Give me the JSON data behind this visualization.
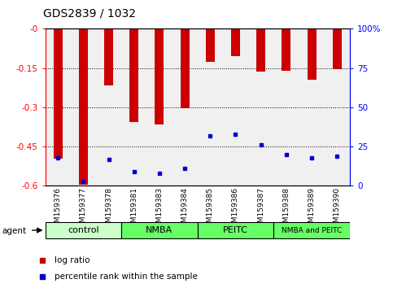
{
  "title": "GDS2839 / 1032",
  "categories": [
    "GSM159376",
    "GSM159377",
    "GSM159378",
    "GSM159381",
    "GSM159383",
    "GSM159384",
    "GSM159385",
    "GSM159386",
    "GSM159387",
    "GSM159388",
    "GSM159389",
    "GSM159390"
  ],
  "log_ratio": [
    -0.495,
    -0.595,
    -0.215,
    -0.355,
    -0.365,
    -0.305,
    -0.125,
    -0.105,
    -0.165,
    -0.16,
    -0.195,
    -0.155
  ],
  "percentile_rank": [
    18,
    3,
    17,
    9,
    8,
    11,
    32,
    33,
    26,
    20,
    18,
    19
  ],
  "ylim_left": [
    -0.6,
    0.0
  ],
  "ylim_right": [
    0,
    100
  ],
  "yticks_left": [
    -0.6,
    -0.45,
    -0.3,
    -0.15,
    0.0
  ],
  "yticks_right": [
    0,
    25,
    50,
    75,
    100
  ],
  "ytick_labels_left": [
    "-0.6",
    "-0.45",
    "-0.3",
    "-0.15",
    "-0"
  ],
  "ytick_labels_right": [
    "0",
    "25",
    "50",
    "75",
    "100%"
  ],
  "bar_color": "#cc0000",
  "blue_color": "#0000cc",
  "agent_groups": [
    {
      "label": "control",
      "start": 0,
      "end": 3,
      "color": "#ccffcc"
    },
    {
      "label": "NMBA",
      "start": 3,
      "end": 6,
      "color": "#66ff66"
    },
    {
      "label": "PEITC",
      "start": 6,
      "end": 9,
      "color": "#66ff66"
    },
    {
      "label": "NMBA and PEITC",
      "start": 9,
      "end": 12,
      "color": "#66ff66"
    }
  ],
  "legend_red": "log ratio",
  "legend_blue": "percentile rank within the sample",
  "xlabel_agent": "agent",
  "bar_width": 0.35,
  "plot_bg": "#f0f0f0"
}
